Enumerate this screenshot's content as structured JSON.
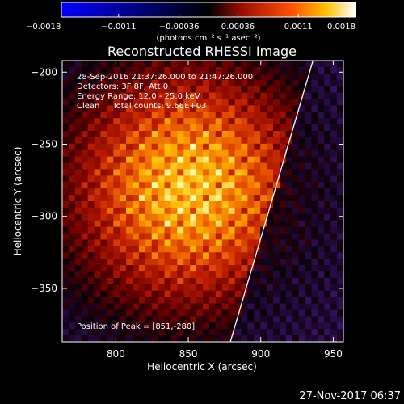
{
  "chart_data": {
    "type": "heatmap",
    "title": "Reconstructed RHESSI Image",
    "xlabel": "Heliocentric X (arcsec)",
    "ylabel": "Heliocentric Y (arcsec)",
    "xlim": [
      763,
      957
    ],
    "ylim": [
      -387,
      -192
    ],
    "x_ticks": [
      800,
      850,
      900,
      950
    ],
    "x_tick_labels": [
      "800",
      "850",
      "900",
      "950"
    ],
    "y_ticks": [
      -200,
      -250,
      -300,
      -350
    ],
    "y_tick_labels": [
      "−200",
      "−250",
      "−300",
      "−350"
    ],
    "colorbar": {
      "min": -0.0018,
      "max": 0.0018,
      "ticks": [
        -0.0018,
        -0.0011,
        -0.00036,
        0.00036,
        0.0011,
        0.0018
      ],
      "tick_labels": [
        "−0.0018",
        "−0.0011",
        "−0.00036",
        "0.00036",
        "0.0011",
        "0.0018"
      ],
      "unit_label": "(photons cm⁻² s⁻¹ asec⁻²)"
    },
    "annotations": {
      "time_range": "28-Sep-2016 21:37:26.000 to 21:47:26.000",
      "detectors": "Detectors: 3F 8F, Att 0",
      "energy": "Energy Range: 12.0 - 25.0 keV",
      "method_counts": "Clean     Total counts: 9.66E+03",
      "peak": "Position of Peak = [851,-280]"
    },
    "peak": [
      851,
      -280
    ],
    "limb_line": [
      [
        879,
        -387
      ],
      [
        936,
        -192
      ]
    ],
    "footer_date": "27-Nov-2017 06:37"
  }
}
